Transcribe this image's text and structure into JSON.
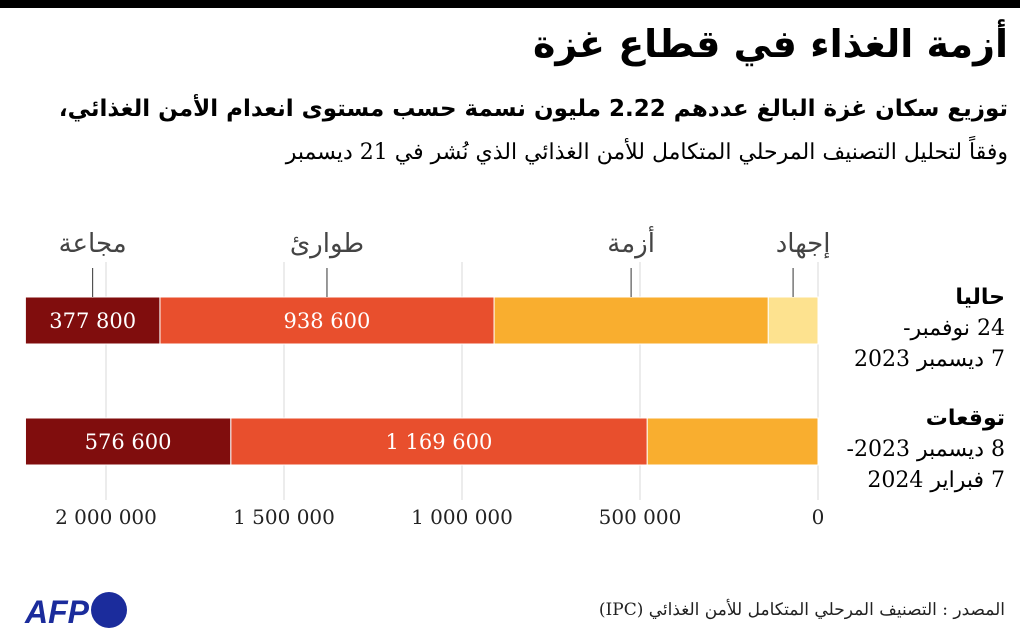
{
  "title": "أزمة الغذاء في قطاع غزة",
  "subtitle_line1": "توزيع سكان غزة البالغ عددهم 2.22 مليون نسمة حسب مستوى انعدام الأمن الغذائي،",
  "subtitle_line2": "وفقاً لتحليل التصنيف المرحلي المتكامل للأمن الغذائي الذي نُشر في 21 ديسمبر",
  "source": "المصدر : التصنيف المرحلي المتكامل للأمن الغذائي (IPC)",
  "logo": "AFP",
  "chart_data": {
    "type": "bar",
    "orientation": "horizontal-stacked",
    "x_direction": "right-to-left",
    "xlim": [
      0,
      2226000
    ],
    "grid": true,
    "x_ticks": [
      0,
      500000,
      1000000,
      1500000,
      2000000
    ],
    "x_tick_labels": [
      "0",
      "500 000",
      "1 000 000",
      "1 500 000",
      "2 000 000"
    ],
    "categories": [
      {
        "title": "حاليا",
        "line2": "24 نوفمبر-",
        "line3": "7 ديسمبر 2023"
      },
      {
        "title": "توقعات",
        "line2": "8 ديسمبر 2023-",
        "line3": "7 فبراير 2024"
      }
    ],
    "series": [
      {
        "name": "إجهاد",
        "color": "#fde28f",
        "values": [
          140000,
          0
        ]
      },
      {
        "name": "أزمة",
        "color": "#f9ae2f",
        "values": [
          770000,
          480000
        ]
      },
      {
        "name": "طوارئ",
        "color": "#e84f2d",
        "values": [
          938600,
          1169600
        ],
        "labels": [
          "938 600",
          "1 169 600"
        ]
      },
      {
        "name": "مجاعة",
        "color": "#800d0d",
        "values": [
          377800,
          576600
        ],
        "labels": [
          "377 800",
          "576 600"
        ]
      }
    ]
  }
}
